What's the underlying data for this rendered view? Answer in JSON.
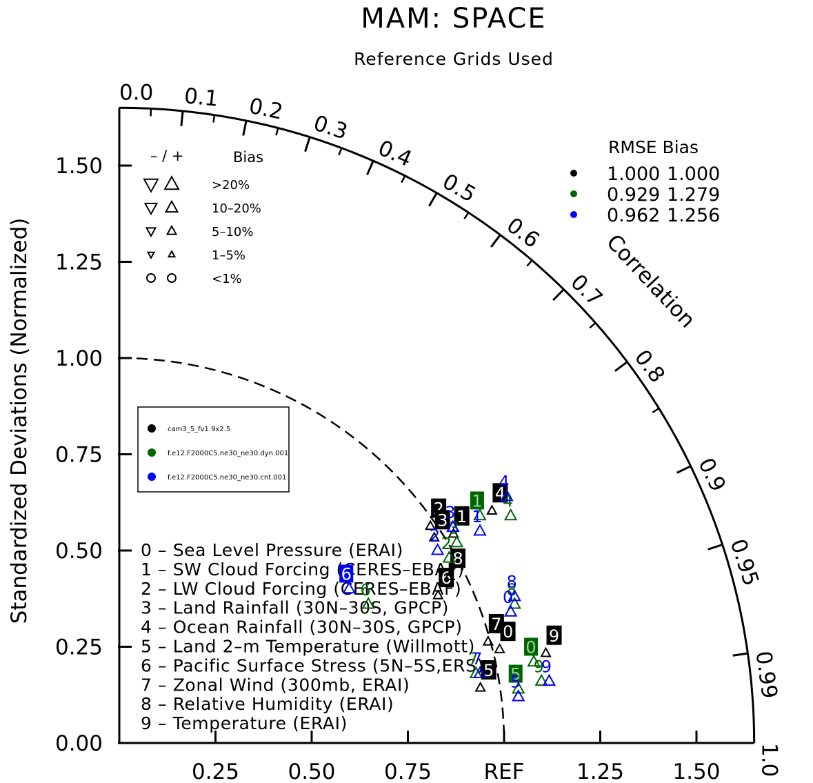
{
  "chart_data": {
    "type": "taylor",
    "title": "MAM: SPACE",
    "subtitle": "Reference Grids Used",
    "ylabel": "Standardized Deviations (Normalized)",
    "corr_label": "Correlation",
    "ref_label": "REF",
    "std_max": 1.65,
    "y_ticks": [
      "0.00",
      "0.25",
      "0.50",
      "0.75",
      "1.00",
      "1.25",
      "1.50"
    ],
    "x_ticks": [
      "0.25",
      "0.50",
      "0.75",
      "REF",
      "1.25",
      "1.50"
    ],
    "corr_ticks": [
      "0.0",
      "0.1",
      "0.2",
      "0.3",
      "0.4",
      "0.5",
      "0.6",
      "0.7",
      "0.8",
      "0.9",
      "0.95",
      "0.99",
      "1.0"
    ],
    "bias_legend": {
      "header_sign": "–  /  +",
      "header": "Bias",
      "rows": [
        ">20%",
        "10–20%",
        "5–10%",
        "1–5%",
        "<1%"
      ]
    },
    "stats_legend": {
      "header": "RMSE  Bias",
      "rows": [
        {
          "color": "#000000",
          "rmse": "1.000",
          "bias": "1.000"
        },
        {
          "color": "#006400",
          "rmse": "0.929",
          "bias": "1.279"
        },
        {
          "color": "#0000ff",
          "rmse": "0.962",
          "bias": "1.256"
        }
      ]
    },
    "cases": [
      {
        "name": "cam3_5_fv1.9x2.5",
        "color": "#000000"
      },
      {
        "name": "f.e12.F2000C5.ne30_ne30.dyn.001",
        "color": "#006400"
      },
      {
        "name": "f.e12.F2000C5.ne30_ne30.cnt.001",
        "color": "#0000ff"
      }
    ],
    "variables": [
      "0 – Sea Level Pressure (ERAI)",
      "1 – SW Cloud Forcing (CERES–EBAF)",
      "2 – LW Cloud Forcing (CERES–EBAF)",
      "3 – Land Rainfall (30N–30S, GPCP)",
      "4 – Ocean Rainfall (30N–30S, GPCP)",
      "5 – Land 2–m Temperature (Willmott)",
      "6 – Pacific Surface Stress (5N–5S,ERS)",
      "7 – Zonal Wind (300mb, ERAI)",
      "8 – Relative Humidity (ERAI)",
      "9 – Temperature (ERAI)"
    ],
    "points": [
      {
        "label": "0",
        "case": 0,
        "x": 1.01,
        "y": 0.29
      },
      {
        "label": "1",
        "case": 0,
        "x": 0.89,
        "y": 0.59
      },
      {
        "label": "2",
        "case": 0,
        "x": 0.83,
        "y": 0.61
      },
      {
        "label": "3",
        "case": 0,
        "x": 0.84,
        "y": 0.58
      },
      {
        "label": "4",
        "case": 0,
        "x": 0.99,
        "y": 0.65
      },
      {
        "label": "5",
        "case": 0,
        "x": 0.96,
        "y": 0.19
      },
      {
        "label": "6",
        "case": 0,
        "x": 0.85,
        "y": 0.43
      },
      {
        "label": "7",
        "case": 0,
        "x": 0.98,
        "y": 0.31
      },
      {
        "label": "8",
        "case": 0,
        "x": 0.88,
        "y": 0.48
      },
      {
        "label": "9",
        "case": 0,
        "x": 1.13,
        "y": 0.28
      },
      {
        "label": "0",
        "case": 1,
        "x": 1.07,
        "y": 0.25
      },
      {
        "label": "1",
        "case": 1,
        "x": 0.93,
        "y": 0.63
      },
      {
        "label": "2",
        "case": 1,
        "x": 0.85,
        "y": 0.52
      },
      {
        "label": "3",
        "case": 1,
        "x": 0.87,
        "y": 0.56
      },
      {
        "label": "4",
        "case": 1,
        "x": 1.01,
        "y": 0.63
      },
      {
        "label": "5",
        "case": 1,
        "x": 1.03,
        "y": 0.18
      },
      {
        "label": "6",
        "case": 1,
        "x": 0.64,
        "y": 0.4
      },
      {
        "label": "7",
        "case": 1,
        "x": 0.92,
        "y": 0.22
      },
      {
        "label": "8",
        "case": 1,
        "x": 1.02,
        "y": 0.4
      },
      {
        "label": "9",
        "case": 1,
        "x": 1.09,
        "y": 0.2
      },
      {
        "label": "0",
        "case": 2,
        "x": 1.01,
        "y": 0.38
      },
      {
        "label": "1",
        "case": 2,
        "x": 0.93,
        "y": 0.59
      },
      {
        "label": "2",
        "case": 2,
        "x": 0.82,
        "y": 0.54
      },
      {
        "label": "3",
        "case": 2,
        "x": 0.86,
        "y": 0.6
      },
      {
        "label": "4",
        "case": 2,
        "x": 1.0,
        "y": 0.68
      },
      {
        "label": "5",
        "case": 2,
        "x": 1.03,
        "y": 0.16
      },
      {
        "label": "6",
        "case": 2,
        "x": 0.59,
        "y": 0.44
      },
      {
        "label": "7",
        "case": 2,
        "x": 0.93,
        "y": 0.22
      },
      {
        "label": "8",
        "case": 2,
        "x": 1.02,
        "y": 0.42
      },
      {
        "label": "9",
        "case": 2,
        "x": 1.11,
        "y": 0.2
      }
    ]
  }
}
